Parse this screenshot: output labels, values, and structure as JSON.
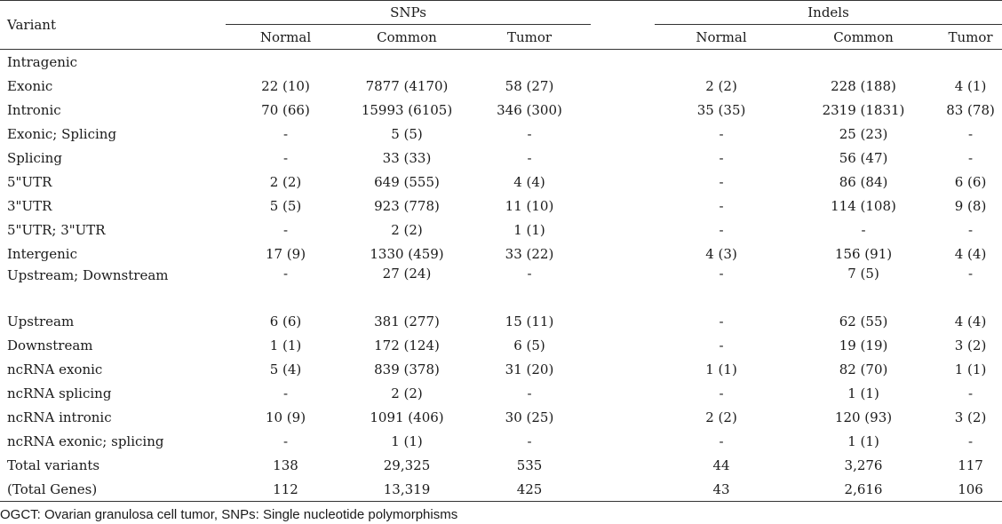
{
  "table": {
    "header": {
      "variant": "Variant",
      "snps": "SNPs",
      "indels": "Indels",
      "sub": [
        "Normal",
        "Common",
        "Tumor",
        "Normal",
        "Common",
        "Tumor"
      ]
    },
    "rows": [
      {
        "label": "Intragenic",
        "cells": [
          "",
          "",
          "",
          "",
          "",
          ""
        ]
      },
      {
        "label": "Exonic",
        "cells": [
          "22 (10)",
          "7877 (4170)",
          "58 (27)",
          "2 (2)",
          "228 (188)",
          "4 (1)"
        ]
      },
      {
        "label": "Intronic",
        "cells": [
          "70 (66)",
          "15993 (6105)",
          "346 (300)",
          "35 (35)",
          "2319 (1831)",
          "83 (78)"
        ]
      },
      {
        "label": "Exonic; Splicing",
        "cells": [
          "-",
          "5 (5)",
          "-",
          "-",
          "25 (23)",
          "-"
        ]
      },
      {
        "label": "Splicing",
        "cells": [
          "-",
          "33 (33)",
          "-",
          "-",
          "56 (47)",
          "-"
        ]
      },
      {
        "label": "5\"UTR",
        "cells": [
          "2 (2)",
          "649 (555)",
          "4 (4)",
          "-",
          "86 (84)",
          "6 (6)"
        ]
      },
      {
        "label": "3\"UTR",
        "cells": [
          "5 (5)",
          "923 (778)",
          "11 (10)",
          "-",
          "114 (108)",
          "9 (8)"
        ]
      },
      {
        "label": "5\"UTR; 3\"UTR",
        "cells": [
          "-",
          "2 (2)",
          "1 (1)",
          "-",
          "-",
          "-"
        ]
      },
      {
        "label": "Intergenic",
        "cells": [
          "17 (9)",
          "1330 (459)",
          "33 (22)",
          "4 (3)",
          "156 (91)",
          "4 (4)"
        ]
      },
      {
        "label": "Upstream; Downstream",
        "cells": [
          "-",
          "27 (24)",
          "-",
          "-",
          "7 (5)",
          "-"
        ]
      },
      {
        "label": "Upstream",
        "cells": [
          "6 (6)",
          "381 (277)",
          "15 (11)",
          "-",
          "62 (55)",
          "4 (4)"
        ]
      },
      {
        "label": "Downstream",
        "cells": [
          "1 (1)",
          "172 (124)",
          "6 (5)",
          "-",
          "19 (19)",
          "3 (2)"
        ]
      },
      {
        "label": "ncRNA exonic",
        "cells": [
          "5 (4)",
          "839 (378)",
          "31 (20)",
          "1 (1)",
          "82 (70)",
          "1 (1)"
        ]
      },
      {
        "label": "ncRNA splicing",
        "cells": [
          "-",
          "2 (2)",
          "-",
          "-",
          "1 (1)",
          "-"
        ]
      },
      {
        "label": "ncRNA intronic",
        "cells": [
          "10 (9)",
          "1091 (406)",
          "30 (25)",
          "2 (2)",
          "120 (93)",
          "3 (2)"
        ]
      },
      {
        "label": "ncRNA exonic; splicing",
        "cells": [
          "-",
          "1 (1)",
          "-",
          "-",
          "1 (1)",
          "-"
        ]
      },
      {
        "label": "Total variants",
        "cells": [
          "138",
          "29,325",
          "535",
          "44",
          "3,276",
          "117"
        ]
      },
      {
        "label": "(Total Genes)",
        "cells": [
          "112",
          "13,319",
          "425",
          "43",
          "2,616",
          "106"
        ]
      }
    ]
  },
  "footnote": "OGCT: Ovarian granulosa cell tumor, SNPs: Single nucleotide polymorphisms"
}
